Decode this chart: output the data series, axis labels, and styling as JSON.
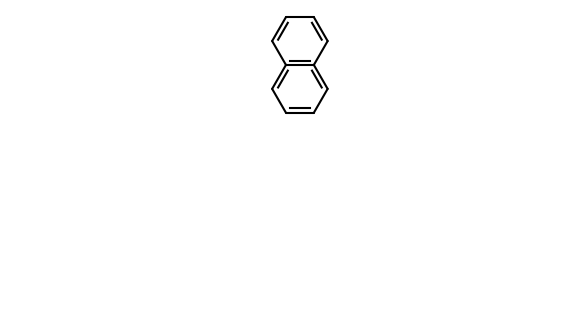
{
  "background_color": "#ffffff",
  "line_color": "#000000",
  "line_width": 1.5,
  "font_size": 9,
  "fig_width": 5.78,
  "fig_height": 3.12,
  "dpi": 100
}
